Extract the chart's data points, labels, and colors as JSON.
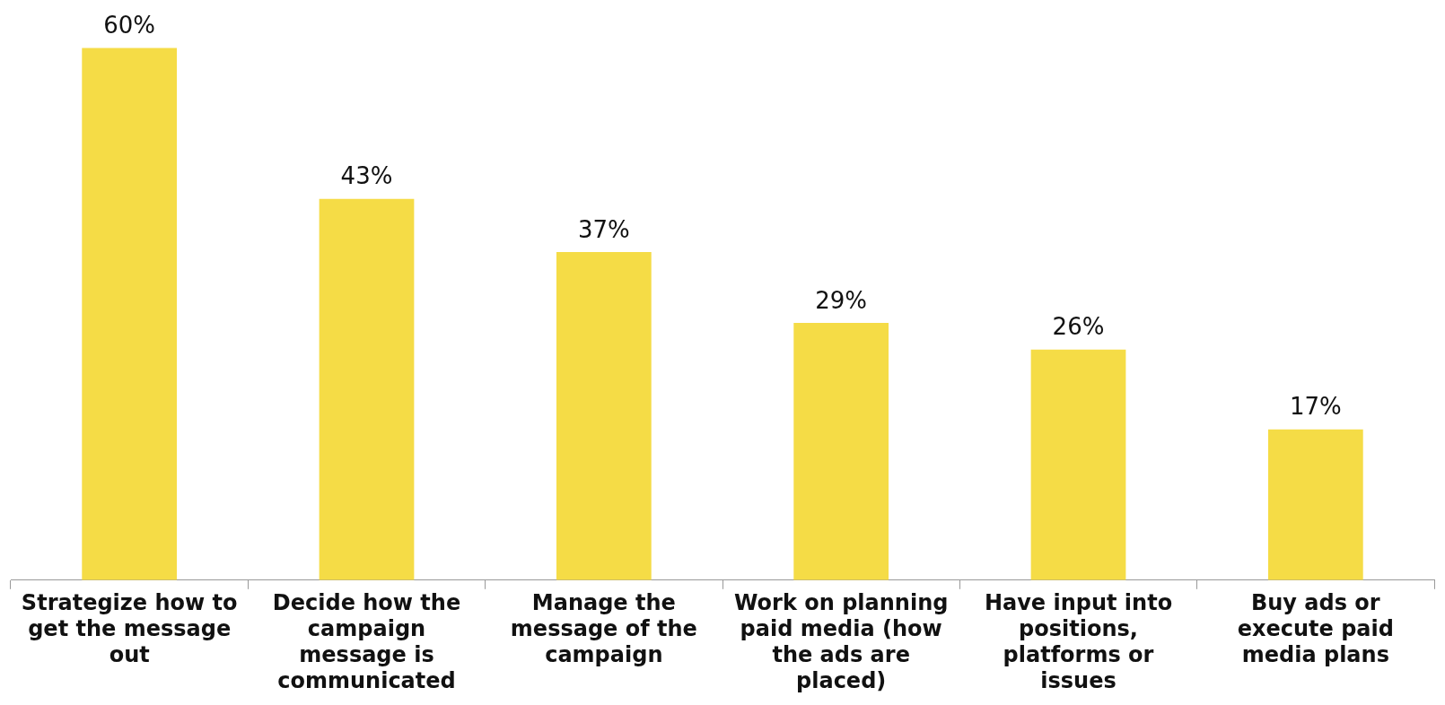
{
  "chart_data": {
    "type": "bar",
    "categories": [
      "Strategize how to get the message out",
      "Decide how the campaign message is communicated",
      "Manage the message of the campaign",
      "Work on planning paid media (how the ads are placed)",
      "Have input into positions, platforms or issues",
      "Buy ads or execute paid media plans"
    ],
    "values": [
      60,
      43,
      37,
      29,
      26,
      17
    ],
    "value_labels": [
      "60%",
      "43%",
      "37%",
      "29%",
      "26%",
      "17%"
    ],
    "color": "#f5dc46",
    "grid": false,
    "legend": false
  }
}
